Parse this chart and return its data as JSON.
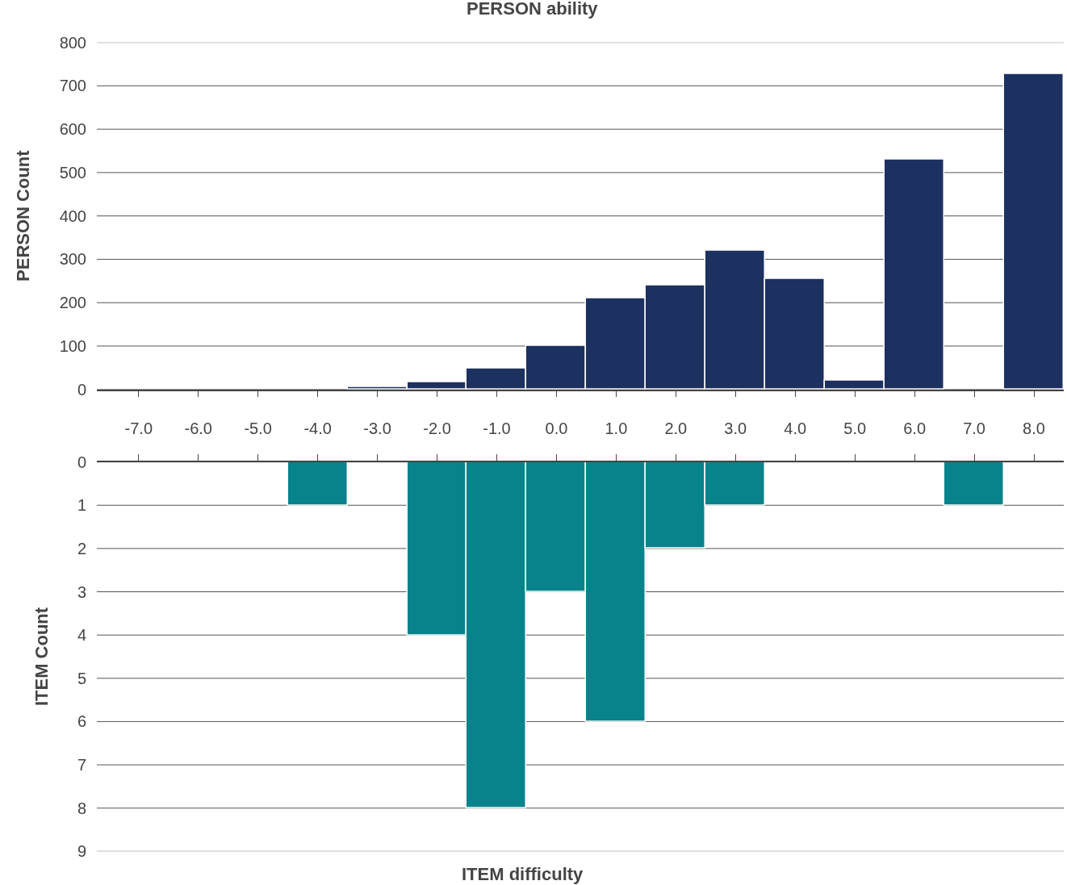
{
  "chart_data": [
    {
      "type": "bar",
      "title": "PERSON ability",
      "ylabel": "PERSON Count",
      "x": [
        -7,
        -6,
        -5,
        -4,
        -3,
        -2,
        -1,
        0,
        1,
        2,
        3,
        4,
        5,
        6,
        7,
        8
      ],
      "series": [
        {
          "color": "#1c3160",
          "values": [
            0,
            0,
            0,
            0,
            5,
            16,
            48,
            100,
            211,
            240,
            320,
            254,
            20,
            530,
            0,
            728
          ]
        }
      ],
      "xlim": [
        -7.7,
        8.5
      ],
      "xticks": [
        {
          "value": -7,
          "label": "-7.0"
        },
        {
          "value": -6,
          "label": "-6.0"
        },
        {
          "value": -5,
          "label": "-5.0"
        },
        {
          "value": -4,
          "label": "-4.0"
        },
        {
          "value": -3,
          "label": "-3.0"
        },
        {
          "value": -2,
          "label": "-2.0"
        },
        {
          "value": -1,
          "label": "-1.0"
        },
        {
          "value": 0,
          "label": "0.0"
        },
        {
          "value": 1,
          "label": "1.0"
        },
        {
          "value": 2,
          "label": "2.0"
        },
        {
          "value": 3,
          "label": "3.0"
        },
        {
          "value": 4,
          "label": "4.0"
        },
        {
          "value": 5,
          "label": "5.0"
        },
        {
          "value": 6,
          "label": "6.0"
        },
        {
          "value": 7,
          "label": "7.0"
        },
        {
          "value": 8,
          "label": "8.0"
        }
      ],
      "ylim": [
        0,
        800
      ],
      "yticks": [
        0,
        100,
        200,
        300,
        400,
        500,
        600,
        700,
        800
      ],
      "grid": "y",
      "legend": false
    },
    {
      "type": "bar",
      "xlabel": "ITEM difficulty",
      "ylabel": "ITEM Count",
      "x": [
        -7,
        -6,
        -5,
        -4,
        -3,
        -2,
        -1,
        0,
        1,
        2,
        3,
        4,
        5,
        6,
        7,
        8
      ],
      "series": [
        {
          "color": "#08838c",
          "values": [
            0,
            0,
            0,
            1,
            0,
            4,
            8,
            3,
            6,
            2,
            1,
            0,
            0,
            0,
            1,
            0
          ]
        }
      ],
      "xlim": [
        -7.7,
        8.5
      ],
      "xticks": [
        {
          "value": -7,
          "label": null
        },
        {
          "value": -6,
          "label": null
        },
        {
          "value": -5,
          "label": null
        },
        {
          "value": -4,
          "label": null
        },
        {
          "value": -3,
          "label": null
        },
        {
          "value": -2,
          "label": null
        },
        {
          "value": -1,
          "label": null
        },
        {
          "value": 0,
          "label": null
        },
        {
          "value": 1,
          "label": null
        },
        {
          "value": 2,
          "label": null
        },
        {
          "value": 3,
          "label": null
        },
        {
          "value": 4,
          "label": null
        },
        {
          "value": 5,
          "label": null
        },
        {
          "value": 6,
          "label": null
        },
        {
          "value": 7,
          "label": null
        },
        {
          "value": 8,
          "label": null
        }
      ],
      "ylim": [
        9,
        0
      ],
      "yticks": [
        0,
        1,
        2,
        3,
        4,
        5,
        6,
        7,
        8,
        9
      ],
      "grid": "y",
      "legend": false,
      "tick_labels": "y"
    }
  ]
}
